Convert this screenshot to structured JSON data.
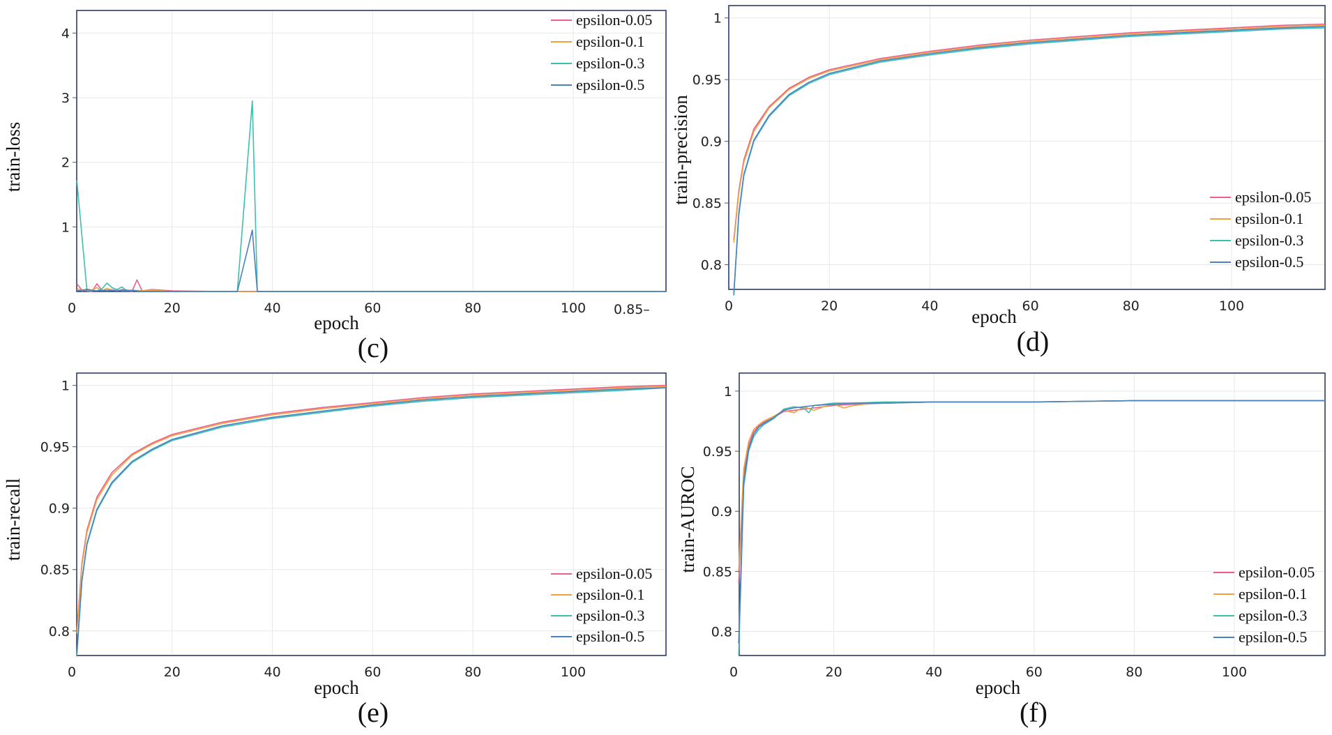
{
  "colors": {
    "epsilon-0.05": "#e8608a",
    "epsilon-0.1": "#f0a040",
    "epsilon-0.3": "#3cbfb0",
    "epsilon-0.5": "#4a7fc0",
    "frame": "#2b3a67",
    "grid": "#e8e8e8"
  },
  "chart_data": [
    {
      "id": "c",
      "type": "line",
      "panel_label": "(c)",
      "xlabel": "epoch",
      "ylabel": "train-loss",
      "xlim": [
        0,
        120
      ],
      "ylim": [
        0,
        4.35
      ],
      "xticks": [
        "0",
        "20",
        "40",
        "60",
        "80",
        "100"
      ],
      "yticks": [
        "1",
        "2",
        "3",
        "4"
      ],
      "stray_label": "0.85",
      "legend_position": "top-right",
      "series": [
        {
          "name": "epsilon-0.05",
          "x": [
            1,
            2,
            3,
            4,
            5,
            6,
            7,
            8,
            9,
            10,
            11,
            12,
            13,
            14,
            16,
            20,
            30,
            40,
            60,
            80,
            100,
            120
          ],
          "y": [
            0.12,
            0.02,
            0.01,
            0.0,
            0.12,
            0.02,
            0.01,
            0.03,
            0.01,
            0.03,
            0.02,
            0.0,
            0.18,
            0.01,
            0.03,
            0.01,
            0.0,
            0.0,
            0.0,
            0.0,
            0.0,
            0.0
          ]
        },
        {
          "name": "epsilon-0.1",
          "x": [
            1,
            2,
            3,
            4,
            5,
            6,
            7,
            8,
            9,
            10,
            12,
            14,
            16,
            20,
            30,
            40,
            60,
            80,
            100,
            120
          ],
          "y": [
            0.05,
            0.01,
            0.04,
            0.02,
            0.06,
            0.01,
            0.05,
            0.02,
            0.03,
            0.01,
            0.02,
            0.01,
            0.02,
            0.0,
            0.0,
            0.0,
            0.0,
            0.0,
            0.0,
            0.0
          ]
        },
        {
          "name": "epsilon-0.3",
          "x": [
            1,
            3,
            5,
            6,
            7,
            8,
            9,
            10,
            11,
            12,
            14,
            20,
            33,
            36,
            37,
            40,
            60,
            80,
            100,
            120
          ],
          "y": [
            1.72,
            0.02,
            0.01,
            0.04,
            0.13,
            0.06,
            0.03,
            0.07,
            0.01,
            0.02,
            0.0,
            0.0,
            0.0,
            2.95,
            0.0,
            0.0,
            0.0,
            0.0,
            0.0,
            0.0
          ]
        },
        {
          "name": "epsilon-0.5",
          "x": [
            1,
            3,
            5,
            7,
            9,
            11,
            14,
            20,
            33,
            36,
            37,
            40,
            60,
            80,
            100,
            120
          ],
          "y": [
            0.01,
            0.03,
            0.01,
            0.02,
            0.01,
            0.02,
            0.0,
            0.0,
            0.0,
            0.95,
            0.0,
            0.0,
            0.0,
            0.0,
            0.0,
            0.0
          ]
        }
      ]
    },
    {
      "id": "d",
      "type": "line",
      "panel_label": "(d)",
      "xlabel": "epoch",
      "ylabel": "train-precision",
      "xlim": [
        0,
        120
      ],
      "ylim": [
        0.78,
        1.01
      ],
      "xticks": [
        "0",
        "20",
        "40",
        "60",
        "80",
        "100"
      ],
      "yticks": [
        "0.8",
        "0.85",
        "0.9",
        "0.95",
        "1"
      ],
      "legend_position": "bottom-right",
      "series": [
        {
          "name": "epsilon-0.05",
          "x": [
            1,
            2,
            3,
            5,
            8,
            12,
            16,
            20,
            30,
            40,
            50,
            60,
            70,
            80,
            90,
            100,
            110,
            120
          ],
          "y": [
            0.82,
            0.86,
            0.885,
            0.91,
            0.928,
            0.943,
            0.952,
            0.958,
            0.967,
            0.973,
            0.978,
            0.982,
            0.985,
            0.988,
            0.99,
            0.992,
            0.994,
            0.995
          ]
        },
        {
          "name": "epsilon-0.1",
          "x": [
            1,
            2,
            3,
            5,
            8,
            12,
            16,
            20,
            30,
            40,
            50,
            60,
            70,
            80,
            90,
            100,
            110,
            120
          ],
          "y": [
            0.818,
            0.858,
            0.883,
            0.908,
            0.927,
            0.942,
            0.951,
            0.957,
            0.966,
            0.972,
            0.977,
            0.981,
            0.984,
            0.987,
            0.989,
            0.991,
            0.993,
            0.994
          ]
        },
        {
          "name": "epsilon-0.3",
          "x": [
            1,
            2,
            3,
            5,
            8,
            12,
            16,
            20,
            30,
            40,
            50,
            60,
            70,
            80,
            90,
            100,
            110,
            120
          ],
          "y": [
            0.775,
            0.84,
            0.872,
            0.9,
            0.92,
            0.937,
            0.947,
            0.954,
            0.964,
            0.97,
            0.975,
            0.979,
            0.982,
            0.985,
            0.987,
            0.989,
            0.991,
            0.992
          ]
        },
        {
          "name": "epsilon-0.5",
          "x": [
            1,
            2,
            3,
            5,
            8,
            12,
            16,
            20,
            30,
            40,
            50,
            60,
            70,
            80,
            90,
            100,
            110,
            120
          ],
          "y": [
            0.776,
            0.842,
            0.873,
            0.901,
            0.921,
            0.938,
            0.948,
            0.955,
            0.965,
            0.971,
            0.976,
            0.98,
            0.983,
            0.986,
            0.988,
            0.99,
            0.992,
            0.993
          ]
        }
      ]
    },
    {
      "id": "e",
      "type": "line",
      "panel_label": "(e)",
      "xlabel": "epoch",
      "ylabel": "train-recall",
      "xlim": [
        0,
        120
      ],
      "ylim": [
        0.78,
        1.01
      ],
      "xticks": [
        "0",
        "20",
        "40",
        "60",
        "80",
        "100"
      ],
      "yticks": [
        "0.8",
        "0.85",
        "0.9",
        "0.95",
        "1"
      ],
      "legend_position": "bottom-right",
      "series": [
        {
          "name": "epsilon-0.05",
          "x": [
            1,
            2,
            3,
            5,
            8,
            12,
            16,
            20,
            30,
            40,
            50,
            60,
            70,
            80,
            90,
            100,
            110,
            120
          ],
          "y": [
            0.8,
            0.855,
            0.882,
            0.909,
            0.929,
            0.944,
            0.953,
            0.96,
            0.97,
            0.977,
            0.982,
            0.986,
            0.99,
            0.993,
            0.995,
            0.997,
            0.999,
            1.0
          ]
        },
        {
          "name": "epsilon-0.1",
          "x": [
            1,
            2,
            3,
            5,
            8,
            12,
            16,
            20,
            30,
            40,
            50,
            60,
            70,
            80,
            90,
            100,
            110,
            120
          ],
          "y": [
            0.798,
            0.853,
            0.88,
            0.907,
            0.927,
            0.943,
            0.952,
            0.959,
            0.969,
            0.976,
            0.981,
            0.985,
            0.989,
            0.992,
            0.994,
            0.996,
            0.998,
            0.999
          ]
        },
        {
          "name": "epsilon-0.3",
          "x": [
            1,
            2,
            3,
            5,
            8,
            12,
            16,
            20,
            30,
            40,
            50,
            60,
            70,
            80,
            90,
            100,
            110,
            120
          ],
          "y": [
            0.78,
            0.84,
            0.87,
            0.898,
            0.92,
            0.937,
            0.947,
            0.955,
            0.966,
            0.973,
            0.978,
            0.983,
            0.987,
            0.99,
            0.992,
            0.994,
            0.996,
            0.998
          ]
        },
        {
          "name": "epsilon-0.5",
          "x": [
            1,
            2,
            3,
            5,
            8,
            12,
            16,
            20,
            30,
            40,
            50,
            60,
            70,
            80,
            90,
            100,
            110,
            120
          ],
          "y": [
            0.782,
            0.841,
            0.871,
            0.899,
            0.921,
            0.938,
            0.948,
            0.956,
            0.967,
            0.974,
            0.979,
            0.984,
            0.988,
            0.991,
            0.993,
            0.995,
            0.997,
            0.998
          ]
        }
      ]
    },
    {
      "id": "f",
      "type": "line",
      "panel_label": "(f)",
      "xlabel": "epoch",
      "ylabel": "train-AUROC",
      "xlim": [
        0,
        120
      ],
      "ylim": [
        0.78,
        1.015
      ],
      "xticks": [
        "0",
        "20",
        "40",
        "60",
        "80",
        "100"
      ],
      "yticks": [
        "0.8",
        "0.85",
        "0.9",
        "0.95",
        "1"
      ],
      "legend_position": "bottom-right",
      "series": [
        {
          "name": "epsilon-0.05",
          "x": [
            1,
            2,
            3,
            4,
            5,
            6,
            8,
            10,
            12,
            14,
            16,
            20,
            24,
            30,
            40,
            60,
            80,
            100,
            120
          ],
          "y": [
            0.84,
            0.93,
            0.955,
            0.966,
            0.971,
            0.974,
            0.978,
            0.983,
            0.984,
            0.985,
            0.986,
            0.988,
            0.989,
            0.99,
            0.991,
            0.991,
            0.992,
            0.992,
            0.992
          ]
        },
        {
          "name": "epsilon-0.1",
          "x": [
            1,
            2,
            3,
            4,
            5,
            6,
            8,
            10,
            12,
            14,
            16,
            18,
            20,
            22,
            24,
            26,
            30,
            40,
            60,
            80,
            100,
            120
          ],
          "y": [
            0.85,
            0.935,
            0.958,
            0.968,
            0.972,
            0.975,
            0.979,
            0.984,
            0.982,
            0.987,
            0.984,
            0.987,
            0.989,
            0.986,
            0.988,
            0.989,
            0.99,
            0.991,
            0.991,
            0.992,
            0.992,
            0.992
          ]
        },
        {
          "name": "epsilon-0.3",
          "x": [
            1,
            2,
            3,
            4,
            5,
            6,
            8,
            10,
            12,
            14,
            15,
            16,
            18,
            20,
            24,
            30,
            40,
            60,
            80,
            100,
            120
          ],
          "y": [
            0.78,
            0.92,
            0.95,
            0.962,
            0.968,
            0.972,
            0.977,
            0.985,
            0.987,
            0.986,
            0.982,
            0.988,
            0.989,
            0.99,
            0.99,
            0.991,
            0.991,
            0.991,
            0.992,
            0.992,
            0.992
          ]
        },
        {
          "name": "epsilon-0.5",
          "x": [
            1,
            2,
            3,
            4,
            5,
            6,
            8,
            10,
            12,
            14,
            16,
            20,
            24,
            30,
            40,
            60,
            80,
            100,
            120
          ],
          "y": [
            0.79,
            0.925,
            0.952,
            0.964,
            0.97,
            0.973,
            0.978,
            0.984,
            0.986,
            0.987,
            0.988,
            0.989,
            0.99,
            0.99,
            0.991,
            0.991,
            0.992,
            0.992,
            0.992
          ]
        }
      ]
    }
  ]
}
